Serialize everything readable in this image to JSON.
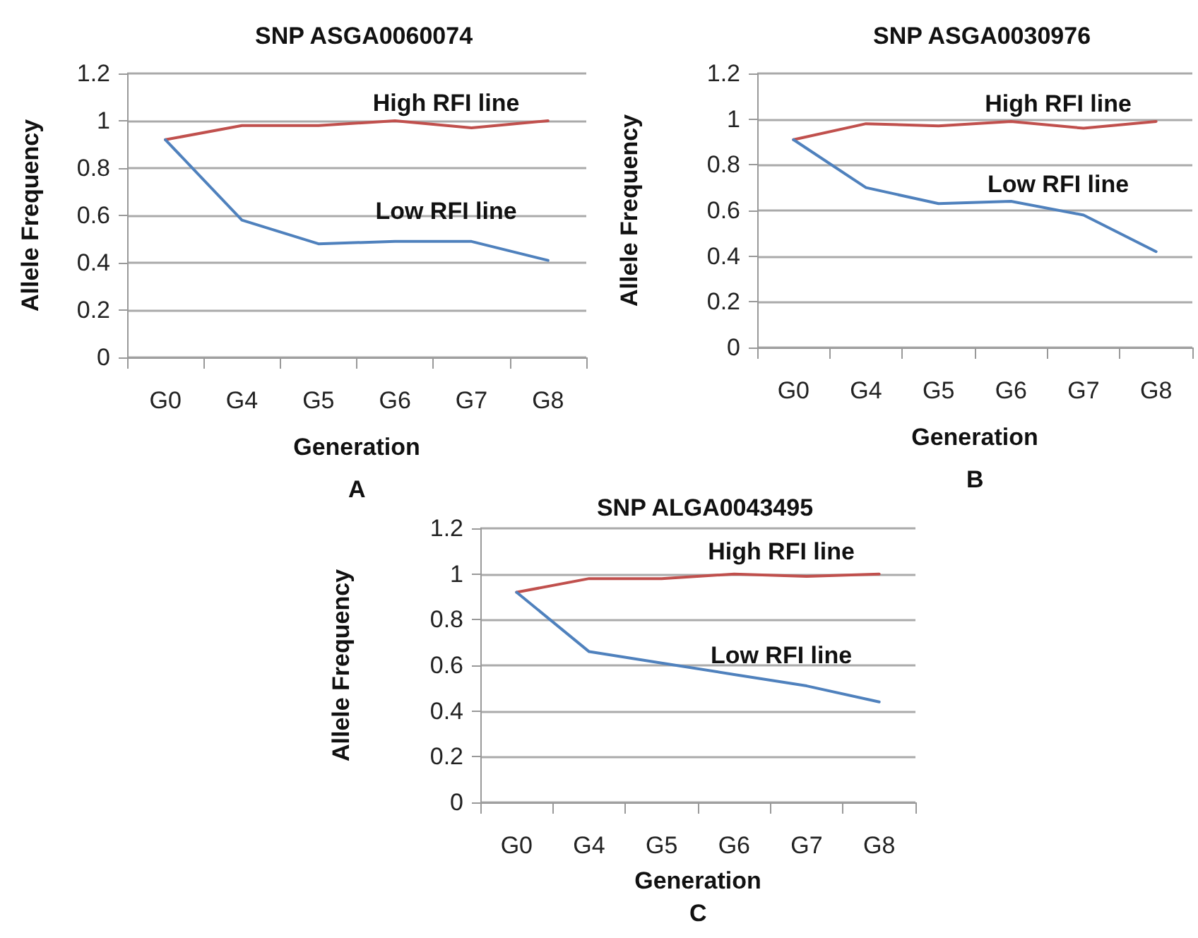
{
  "chart_data": [
    {
      "type": "line",
      "title": "SNP ASGA0060074",
      "xlabel": "Generation",
      "ylabel": "Allele Frequency",
      "annotations": [
        "A"
      ],
      "categories": [
        "G0",
        "G4",
        "G5",
        "G6",
        "G7",
        "G8"
      ],
      "ylim": [
        0,
        1.2
      ],
      "yticks": [
        0,
        0.2,
        0.4,
        0.6,
        0.8,
        1,
        1.2
      ],
      "grid": "y",
      "marker": "none",
      "series": [
        {
          "name": "High RFI line",
          "color": "#c0504d",
          "values": [
            0.92,
            0.98,
            0.98,
            1.0,
            0.97,
            1.0
          ]
        },
        {
          "name": "Low RFI line",
          "color": "#4f81bd",
          "values": [
            0.92,
            0.58,
            0.48,
            0.49,
            0.49,
            0.41
          ]
        }
      ]
    },
    {
      "type": "line",
      "title": "SNP ASGA0030976",
      "xlabel": "Generation",
      "ylabel": "Allele Frequency",
      "annotations": [
        "B"
      ],
      "categories": [
        "G0",
        "G4",
        "G5",
        "G6",
        "G7",
        "G8"
      ],
      "ylim": [
        0,
        1.2
      ],
      "yticks": [
        0,
        0.2,
        0.4,
        0.6,
        0.8,
        1,
        1.2
      ],
      "grid": "y",
      "marker": "none",
      "series": [
        {
          "name": "High RFI line",
          "color": "#c0504d",
          "values": [
            0.91,
            0.98,
            0.97,
            0.99,
            0.96,
            0.99
          ]
        },
        {
          "name": "Low RFI line",
          "color": "#4f81bd",
          "values": [
            0.91,
            0.7,
            0.63,
            0.64,
            0.58,
            0.42
          ]
        }
      ]
    },
    {
      "type": "line",
      "title": "SNP ALGA0043495",
      "xlabel": "Generation",
      "ylabel": "Allele Frequency",
      "annotations": [
        "C"
      ],
      "categories": [
        "G0",
        "G4",
        "G5",
        "G6",
        "G7",
        "G8"
      ],
      "ylim": [
        0,
        1.2
      ],
      "yticks": [
        0,
        0.2,
        0.4,
        0.6,
        0.8,
        1,
        1.2
      ],
      "grid": "y",
      "marker": "none",
      "series": [
        {
          "name": "High RFI line",
          "color": "#c0504d",
          "values": [
            0.92,
            0.98,
            0.98,
            1.0,
            0.99,
            1.0
          ]
        },
        {
          "name": "Low RFI line",
          "color": "#4f81bd",
          "values": [
            0.92,
            0.66,
            0.61,
            0.56,
            0.51,
            0.44
          ]
        }
      ]
    }
  ]
}
